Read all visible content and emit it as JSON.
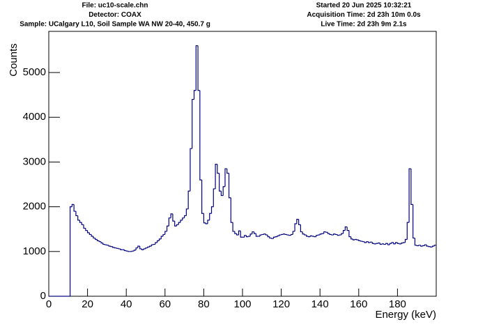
{
  "chart_data": {
    "type": "histogram",
    "header_left": [
      "File: uc10-scale.chn",
      "Detector: COAX",
      "Sample: UCalgary L10, Soil Sample WA NW 20-40, 450.7 g"
    ],
    "header_right": [
      "Started 20 Jun 2025 10:32:21",
      "Acquisition Time: 2d 23h 10m 0.0s",
      "Live Time: 2d 23h 9m 2.1s"
    ],
    "xlabel": "Energy (keV)",
    "ylabel": "Counts",
    "color": "#000080",
    "xlim": [
      0,
      200
    ],
    "ylim": [
      0,
      5920
    ],
    "xticks": [
      0,
      20,
      40,
      60,
      80,
      100,
      120,
      140,
      160,
      180
    ],
    "yticks": [
      0,
      1000,
      2000,
      3000,
      4000,
      5000
    ],
    "bins": [
      0,
      1,
      2,
      3,
      4,
      5,
      6,
      7,
      8,
      9,
      10,
      11,
      12,
      13,
      14,
      15,
      16,
      17,
      18,
      19,
      20,
      21,
      22,
      23,
      24,
      25,
      26,
      27,
      28,
      29,
      30,
      31,
      32,
      33,
      34,
      35,
      36,
      37,
      38,
      39,
      40,
      41,
      42,
      43,
      44,
      45,
      46,
      47,
      48,
      49,
      50,
      51,
      52,
      53,
      54,
      55,
      56,
      57,
      58,
      59,
      60,
      61,
      62,
      63,
      64,
      65,
      66,
      67,
      68,
      69,
      70,
      71,
      72,
      73,
      74,
      75,
      76,
      77,
      78,
      79,
      80,
      81,
      82,
      83,
      84,
      85,
      86,
      87,
      88,
      89,
      90,
      91,
      92,
      93,
      94,
      95,
      96,
      97,
      98,
      99,
      100,
      101,
      102,
      103,
      104,
      105,
      106,
      107,
      108,
      109,
      110,
      111,
      112,
      113,
      114,
      115,
      116,
      117,
      118,
      119,
      120,
      121,
      122,
      123,
      124,
      125,
      126,
      127,
      128,
      129,
      130,
      131,
      132,
      133,
      134,
      135,
      136,
      137,
      138,
      139,
      140,
      141,
      142,
      143,
      144,
      145,
      146,
      147,
      148,
      149,
      150,
      151,
      152,
      153,
      154,
      155,
      156,
      157,
      158,
      159,
      160,
      161,
      162,
      163,
      164,
      165,
      166,
      167,
      168,
      169,
      170,
      171,
      172,
      173,
      174,
      175,
      176,
      177,
      178,
      179,
      180,
      181,
      182,
      183,
      184,
      185,
      186,
      187,
      188,
      189,
      190,
      191,
      192,
      193,
      194,
      195,
      196,
      197,
      198,
      199,
      200
    ],
    "counts": [
      0,
      0,
      0,
      0,
      0,
      0,
      0,
      0,
      0,
      0,
      0,
      2000,
      2050,
      1900,
      1800,
      1700,
      1650,
      1600,
      1520,
      1470,
      1420,
      1380,
      1340,
      1300,
      1270,
      1240,
      1220,
      1190,
      1160,
      1150,
      1140,
      1120,
      1110,
      1090,
      1080,
      1070,
      1060,
      1040,
      1040,
      1020,
      1010,
      1000,
      1000,
      1010,
      1030,
      1080,
      1120,
      1060,
      1040,
      1060,
      1080,
      1100,
      1120,
      1150,
      1160,
      1200,
      1240,
      1280,
      1340,
      1380,
      1450,
      1570,
      1750,
      1840,
      1680,
      1570,
      1600,
      1650,
      1700,
      1750,
      1800,
      1950,
      2350,
      3300,
      4400,
      4600,
      5600,
      4600,
      2600,
      1850,
      1640,
      1620,
      1700,
      1850,
      2000,
      2400,
      2950,
      2750,
      2350,
      2250,
      2450,
      2850,
      2750,
      2200,
      1650,
      1450,
      1400,
      1370,
      1460,
      1320,
      1320,
      1360,
      1330,
      1340,
      1390,
      1440,
      1400,
      1340,
      1340,
      1370,
      1380,
      1390,
      1370,
      1330,
      1300,
      1290,
      1320,
      1330,
      1350,
      1370,
      1380,
      1390,
      1380,
      1370,
      1360,
      1380,
      1450,
      1620,
      1720,
      1600,
      1440,
      1390,
      1370,
      1340,
      1330,
      1350,
      1340,
      1330,
      1360,
      1370,
      1390,
      1400,
      1440,
      1430,
      1400,
      1380,
      1370,
      1390,
      1380,
      1360,
      1370,
      1400,
      1470,
      1550,
      1470,
      1330,
      1280,
      1260,
      1270,
      1260,
      1240,
      1230,
      1220,
      1200,
      1220,
      1200,
      1210,
      1180,
      1170,
      1180,
      1190,
      1160,
      1170,
      1160,
      1180,
      1150,
      1180,
      1200,
      1170,
      1200,
      1180,
      1170,
      1190,
      1200,
      1270,
      1650,
      2850,
      2050,
      1300,
      1140,
      1130,
      1140,
      1120,
      1130,
      1150,
      1120,
      1110,
      1100,
      1120,
      1140
    ]
  }
}
